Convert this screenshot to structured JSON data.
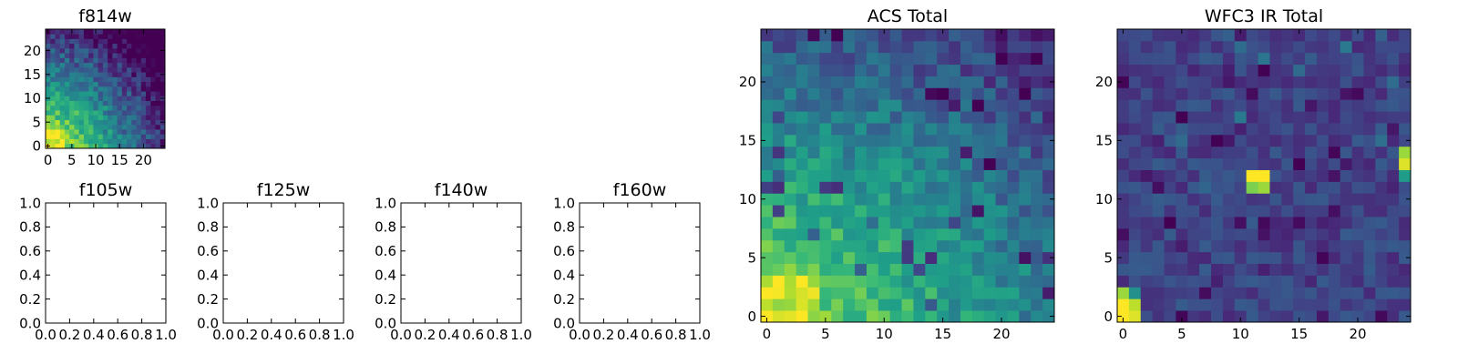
{
  "chart_data": [
    {
      "type": "heatmap",
      "title": "f814w",
      "colormap": "viridis",
      "xlim": [
        -0.5,
        24.5
      ],
      "ylim": [
        -0.5,
        24.5
      ],
      "xticks": [
        "0",
        "5",
        "10",
        "15",
        "20"
      ],
      "yticks": [
        "0",
        "5",
        "10",
        "15",
        "20"
      ],
      "pixel_grid": [
        25,
        25
      ],
      "value_trend": "bright yellow in lower-left corner (x 0-4, y 0-4), fading to green and then dark purple toward the top and right",
      "value_range": [
        0,
        1
      ]
    },
    {
      "type": "empty",
      "title": "f105w",
      "xlim": [
        0,
        1
      ],
      "ylim": [
        0,
        1
      ],
      "xticks": [
        "0.0",
        "0.2",
        "0.4",
        "0.6",
        "0.8",
        "1.0"
      ],
      "yticks": [
        "0.0",
        "0.2",
        "0.4",
        "0.6",
        "0.8",
        "1.0"
      ]
    },
    {
      "type": "empty",
      "title": "f125w",
      "xlim": [
        0,
        1
      ],
      "ylim": [
        0,
        1
      ],
      "xticks": [
        "0.0",
        "0.2",
        "0.4",
        "0.6",
        "0.8",
        "1.0"
      ],
      "yticks": [
        "0.0",
        "0.2",
        "0.4",
        "0.6",
        "0.8",
        "1.0"
      ]
    },
    {
      "type": "empty",
      "title": "f140w",
      "xlim": [
        0,
        1
      ],
      "ylim": [
        0,
        1
      ],
      "xticks": [
        "0.0",
        "0.2",
        "0.4",
        "0.6",
        "0.8",
        "1.0"
      ],
      "yticks": [
        "0.0",
        "0.2",
        "0.4",
        "0.6",
        "0.8",
        "1.0"
      ]
    },
    {
      "type": "empty",
      "title": "f160w",
      "xlim": [
        0,
        1
      ],
      "ylim": [
        0,
        1
      ],
      "xticks": [
        "0.0",
        "0.2",
        "0.4",
        "0.6",
        "0.8",
        "1.0"
      ],
      "yticks": [
        "0.0",
        "0.2",
        "0.4",
        "0.6",
        "0.8",
        "1.0"
      ]
    },
    {
      "type": "heatmap",
      "title": "ACS Total",
      "colormap": "viridis",
      "xlim": [
        -0.5,
        24.5
      ],
      "ylim": [
        -0.5,
        24.5
      ],
      "xticks": [
        "0",
        "5",
        "10",
        "15",
        "20"
      ],
      "yticks": [
        "0",
        "5",
        "10",
        "15",
        "20"
      ],
      "pixel_grid": [
        25,
        25
      ],
      "value_trend": "yellow in lower-left (x 0-5, y 0-4), green over the middle, teal and dark purple patches toward the top and right",
      "value_range": [
        0,
        1
      ]
    },
    {
      "type": "heatmap",
      "title": "WFC3 IR Total",
      "colormap": "viridis",
      "xlim": [
        -0.5,
        24.5
      ],
      "ylim": [
        -0.5,
        24.5
      ],
      "xticks": [
        "0",
        "5",
        "10",
        "15",
        "20"
      ],
      "yticks": [
        "0",
        "5",
        "10",
        "15",
        "20"
      ],
      "pixel_grid": [
        25,
        25
      ],
      "value_trend": "mostly dark blue-purple background; bright yellow at lower-left (x 0-1, y 0-2), near center (x 11-12, y 11-12) and at the right edge (x 24, y 13-14)",
      "value_range": [
        0,
        1
      ],
      "hot_pixels": [
        {
          "x": 0,
          "y": 0,
          "v": 1.0
        },
        {
          "x": 1,
          "y": 0,
          "v": 0.95
        },
        {
          "x": 0,
          "y": 1,
          "v": 1.0
        },
        {
          "x": 1,
          "y": 1,
          "v": 0.9
        },
        {
          "x": 0,
          "y": 2,
          "v": 0.85
        },
        {
          "x": 1,
          "y": 2,
          "v": 0.5
        },
        {
          "x": 11,
          "y": 12,
          "v": 1.0
        },
        {
          "x": 12,
          "y": 12,
          "v": 1.0
        },
        {
          "x": 11,
          "y": 11,
          "v": 0.8
        },
        {
          "x": 12,
          "y": 11,
          "v": 0.85
        },
        {
          "x": 24,
          "y": 13,
          "v": 0.95
        },
        {
          "x": 24,
          "y": 14,
          "v": 0.85
        },
        {
          "x": 24,
          "y": 12,
          "v": 0.55
        }
      ]
    }
  ]
}
